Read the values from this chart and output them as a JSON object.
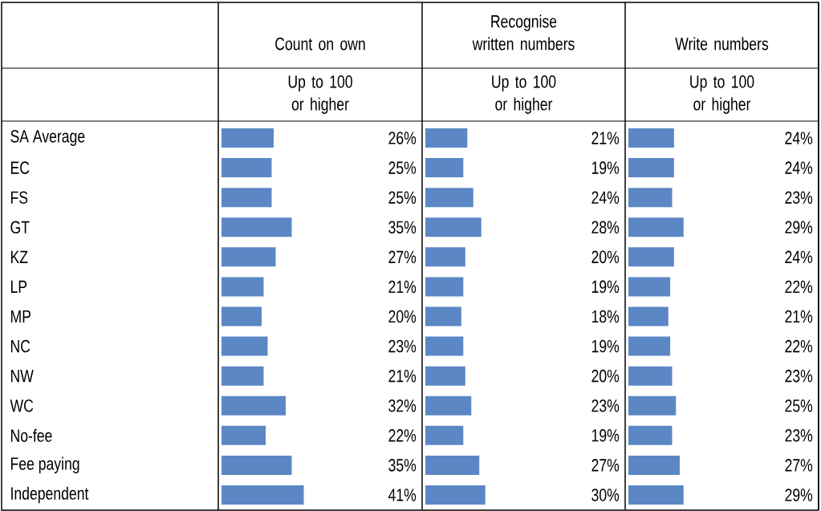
{
  "chart_data": [
    {
      "type": "bar",
      "orientation": "horizontal",
      "title": "Count on own",
      "subtitle": "Up to 100 or higher",
      "categories": [
        "SA Average",
        "EC",
        "FS",
        "GT",
        "KZ",
        "LP",
        "MP",
        "NC",
        "NW",
        "WC",
        "No-fee",
        "Fee paying",
        "Independent"
      ],
      "values": [
        26,
        25,
        25,
        35,
        27,
        21,
        20,
        23,
        21,
        32,
        22,
        35,
        41
      ],
      "value_labels": [
        "26%",
        "25%",
        "25%",
        "35%",
        "27%",
        "21%",
        "20%",
        "23%",
        "21%",
        "32%",
        "22%",
        "35%",
        "41%"
      ],
      "color": "#5b87c5",
      "xlim": [
        0,
        100
      ]
    },
    {
      "type": "bar",
      "orientation": "horizontal",
      "title": "Recognise written numbers",
      "subtitle": "Up to 100 or higher",
      "categories": [
        null,
        null,
        null,
        null,
        null,
        null,
        null,
        null,
        null,
        null,
        null,
        null,
        null
      ],
      "values": [
        21,
        19,
        24,
        28,
        20,
        19,
        18,
        19,
        20,
        23,
        19,
        27,
        30
      ],
      "value_labels": [
        "21%",
        "19%",
        "24%",
        "28%",
        "20%",
        "19%",
        "18%",
        "19%",
        "20%",
        "23%",
        "19%",
        "27%",
        "30%"
      ],
      "color": "#5b87c5",
      "xlim": [
        0,
        100
      ]
    },
    {
      "type": "bar",
      "orientation": "horizontal",
      "title": "Write numbers",
      "subtitle": "Up to 100 or higher",
      "categories": [
        null,
        null,
        null,
        null,
        null,
        null,
        null,
        null,
        null,
        null,
        null,
        null,
        null
      ],
      "values": [
        24,
        24,
        23,
        29,
        24,
        22,
        21,
        22,
        23,
        25,
        23,
        27,
        29
      ],
      "value_labels": [
        "24%",
        "24%",
        "23%",
        "29%",
        "24%",
        "22%",
        "21%",
        "22%",
        "23%",
        "25%",
        "23%",
        "27%",
        "29%"
      ],
      "color": "#5b87c5",
      "xlim": [
        0,
        100
      ]
    }
  ]
}
